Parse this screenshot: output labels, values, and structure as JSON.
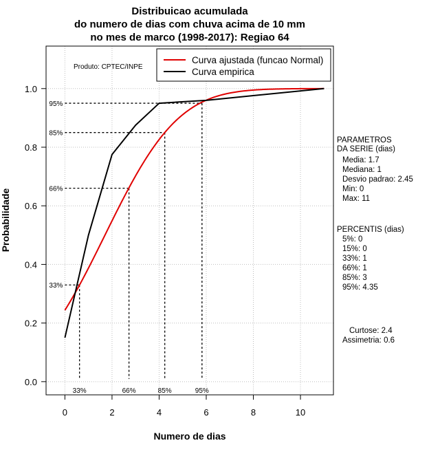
{
  "chart_data": {
    "type": "line",
    "title": [
      "Distribuicao acumulada",
      "do numero de dias com chuva acima de 10 mm",
      "no mes de marco (1998-2017): Regiao 64"
    ],
    "xlabel": "Numero de dias",
    "ylabel": "Probabilidade",
    "xlim": [
      -0.8,
      11.4
    ],
    "ylim": [
      -0.045,
      1.145
    ],
    "x_ticks": [
      0,
      2,
      4,
      6,
      8,
      10
    ],
    "y_ticks": [
      "0.0",
      "0.2",
      "0.4",
      "0.6",
      "0.8",
      "1.0"
    ],
    "grid": true,
    "legend_position": "top-right",
    "producer_note": "Produto: CPTEC/INPE",
    "series": [
      {
        "name": "Curva ajustada (funcao Normal)",
        "color": "#e00000",
        "kind": "normal_cdf",
        "mean": 1.7,
        "sd": 2.45,
        "x_range": [
          0,
          11
        ]
      },
      {
        "name": "Curva empirica",
        "color": "#000000",
        "kind": "points",
        "x": [
          0,
          1,
          2,
          3,
          4,
          6,
          11
        ],
        "y": [
          0.15,
          0.5,
          0.775,
          0.875,
          0.95,
          0.96,
          1.0
        ]
      }
    ],
    "percentile_guides": [
      {
        "label": "33%",
        "prob": 0.33,
        "x": 0.62
      },
      {
        "label": "66%",
        "prob": 0.66,
        "x": 2.72
      },
      {
        "label": "85%",
        "prob": 0.85,
        "x": 4.24
      },
      {
        "label": "95%",
        "prob": 0.95,
        "x": 5.82
      }
    ],
    "side_panel": {
      "parametros_title": [
        "PARAMETROS",
        "DA SERIE (dias)"
      ],
      "parametros": [
        "Media: 1.7",
        "Mediana: 1",
        "Desvio padrao: 2.45",
        "Min: 0",
        "Max: 11"
      ],
      "percentis_title": "PERCENTIS (dias)",
      "percentis": [
        "5%: 0",
        "15%: 0",
        "33%: 1",
        "66%: 1",
        "85%: 3",
        "95%: 4.35"
      ],
      "curtose": "Curtose: 2.4",
      "assimetria": "Assimetria: 0.6"
    }
  }
}
